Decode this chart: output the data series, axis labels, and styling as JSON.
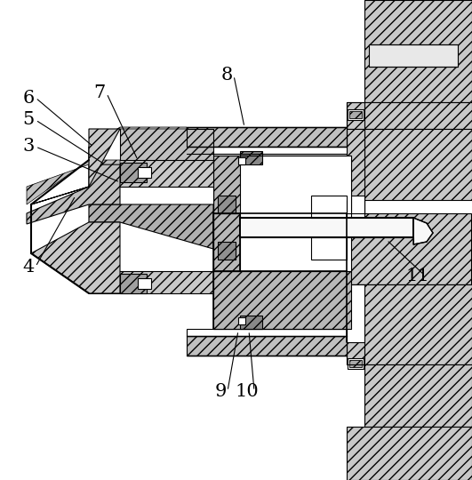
{
  "bg_color": "#ffffff",
  "lc": "#000000",
  "hatch": "///",
  "figsize": [
    5.31,
    5.4
  ],
  "dpi": 100
}
